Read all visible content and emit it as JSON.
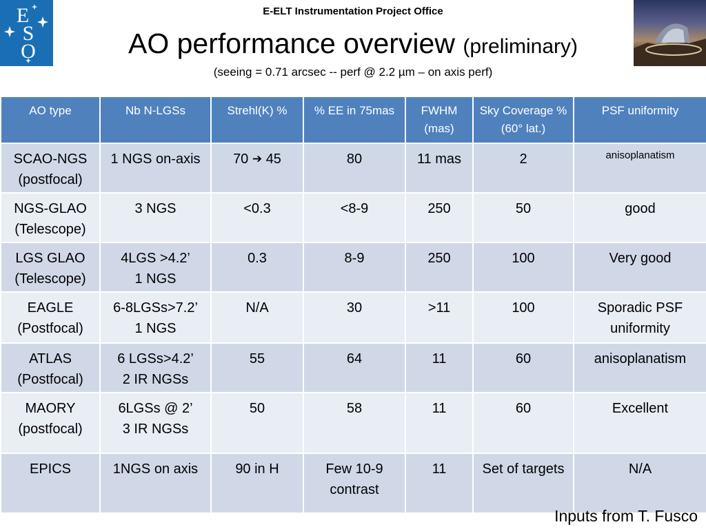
{
  "header": {
    "office": "E-ELT Instrumentation  Project Office",
    "title_main": "AO performance overview",
    "title_paren": "(preliminary)",
    "subtitle": "(seeing = 0.71 arcsec -- perf @ 2.2 µm – on axis perf)"
  },
  "logo": {
    "letters": [
      "E",
      "S",
      "O"
    ],
    "color": "#1a6fb4"
  },
  "table": {
    "header_color": "#4f81bd",
    "columns": [
      "AO type",
      "Nb N-LGSs",
      "Strehl(K) %",
      "% EE in 75mas",
      "FWHM (mas)",
      "Sky Coverage % (60° lat.)",
      "PSF uniformity"
    ],
    "rows": [
      {
        "ao_type": "SCAO-NGS (postfocal)",
        "nb": "1 NGS on-axis",
        "strehl_from": "70",
        "strehl_arrow": "➔",
        "strehl_to": "45",
        "ee": "80",
        "fwhm": "11 mas",
        "sky": "2",
        "psf": "anisoplanatism"
      },
      {
        "ao_type": "NGS-GLAO (Telescope)",
        "nb": "3 NGS",
        "strehl": "<0.3",
        "ee": "<8-9",
        "fwhm": "250",
        "sky": "50",
        "psf": "good"
      },
      {
        "ao_type": "LGS GLAO (Telescope)",
        "nb_line1": "4LGS >4.2’",
        "nb_line2": "1 NGS",
        "strehl": "0.3",
        "ee": "8-9",
        "fwhm": "250",
        "sky": "100",
        "psf": "Very good"
      },
      {
        "ao_type": "EAGLE (Postfocal)",
        "nb_line1": "6-8LGSs>7.2’",
        "nb_line2": "1 NGS",
        "strehl": "N/A",
        "ee": "30",
        "fwhm": ">11",
        "sky": "100",
        "psf": "Sporadic PSF uniformity"
      },
      {
        "ao_type": "ATLAS (Postfocal)",
        "nb_line1": "6 LGSs>4.2’",
        "nb_line2": "2 IR NGSs",
        "strehl": "55",
        "ee": "64",
        "fwhm": "11",
        "sky": "60",
        "psf": "anisoplanatism"
      },
      {
        "ao_type": "MAORY (postfocal)",
        "nb_line1": "6LGSs @ 2’",
        "nb_line2": "3 IR NGSs",
        "strehl": "50",
        "ee": "58",
        "fwhm": "11",
        "sky": "60",
        "psf": "Excellent"
      },
      {
        "ao_type": "EPICS",
        "nb": "1NGS on axis",
        "strehl": "90 in H",
        "ee": "Few 10-9 contrast",
        "fwhm": "11",
        "sky": "Set of targets",
        "psf": "N/A"
      }
    ]
  },
  "credit": "Inputs from T. Fusco"
}
